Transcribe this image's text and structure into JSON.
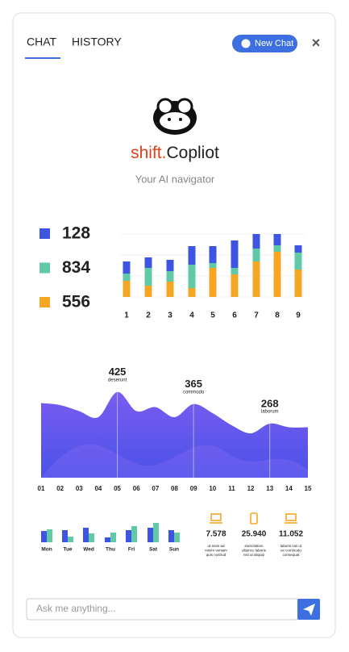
{
  "header": {
    "tabs": [
      "CHAT",
      "HISTORY"
    ],
    "new_chat": "New Chat",
    "close": "×"
  },
  "brand": {
    "name_prefix": "shift.",
    "name": "Copliot",
    "tagline": "Your AI navigator"
  },
  "chart_data": [
    {
      "type": "stacked-bar",
      "categories": [
        "1",
        "2",
        "3",
        "4",
        "5",
        "6",
        "7",
        "8",
        "9"
      ],
      "series": [
        {
          "name": "128",
          "color": "#3d55e0",
          "values": [
            15,
            13,
            14,
            23,
            21,
            34,
            18,
            14,
            9
          ]
        },
        {
          "name": "834",
          "color": "#5fc9a8",
          "values": [
            9,
            22,
            13,
            29,
            6,
            8,
            16,
            8,
            21
          ]
        },
        {
          "name": "556",
          "color": "#f5a623",
          "values": [
            20,
            14,
            19,
            11,
            36,
            28,
            44,
            56,
            34
          ]
        }
      ]
    },
    {
      "type": "area",
      "x": [
        "01",
        "02",
        "03",
        "04",
        "05",
        "06",
        "07",
        "08",
        "09",
        "10",
        "11",
        "12",
        "13",
        "14",
        "15"
      ],
      "series": [
        {
          "color": "#6a5df0",
          "values": [
            370,
            360,
            330,
            300,
            425,
            330,
            350,
            300,
            365,
            320,
            260,
            220,
            268,
            250,
            250
          ]
        }
      ],
      "point_labels": [
        null,
        null,
        null,
        null,
        "deserunt",
        null,
        null,
        null,
        "commodo",
        null,
        null,
        null,
        "laborum",
        null,
        null
      ]
    },
    {
      "type": "grouped-bar",
      "categories": [
        "Mon",
        "Tue",
        "Wed",
        "Thu",
        "Fri",
        "Sat",
        "Sun"
      ],
      "series": [
        {
          "color": "#3d55e0",
          "values": [
            14,
            15,
            18,
            6,
            15,
            18,
            15
          ]
        },
        {
          "color": "#5fc9a8",
          "values": [
            16,
            7,
            11,
            12,
            20,
            24,
            12
          ]
        }
      ]
    }
  ],
  "stats": [
    {
      "value": "7.578",
      "text": [
        "ut enim ad",
        "minim veniam",
        "quis nostrud"
      ]
    },
    {
      "value": "25.940",
      "text": [
        "exercitation",
        "ullamco laboris",
        "nisi ut aliquip"
      ]
    },
    {
      "value": "11.052",
      "text": [
        "laboris nisi ut",
        "ex commodo",
        "consequat"
      ]
    }
  ],
  "input": {
    "placeholder": "Ask me anything..."
  }
}
